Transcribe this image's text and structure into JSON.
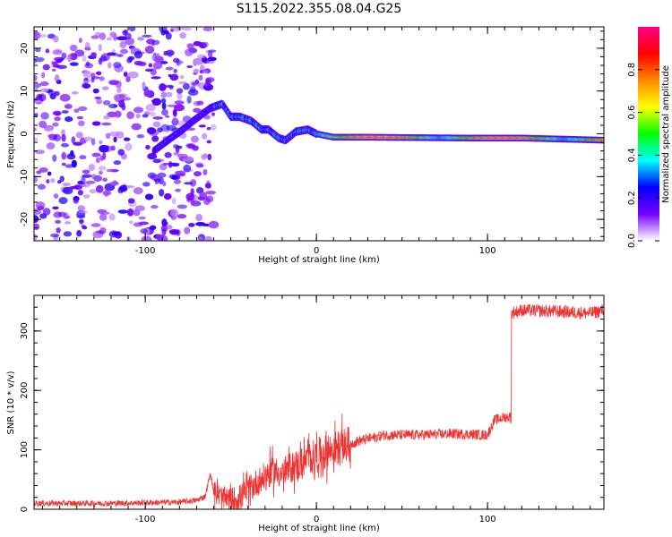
{
  "title": "S115.2022.355.08.04.G25",
  "colors": {
    "snr_line": "#ee3333",
    "axis": "#000000"
  },
  "chart_data": [
    {
      "type": "heatmap",
      "name": "spectrogram",
      "xlabel": "Height of straight line (km)",
      "ylabel": "Frequency (Hz)",
      "xlim": [
        -165,
        168
      ],
      "ylim": [
        -25,
        25
      ],
      "xticks": [
        -100,
        0,
        100
      ],
      "xtick_labels": [
        "-100",
        "0",
        "100"
      ],
      "yticks": [
        -20,
        -10,
        0,
        10,
        20
      ],
      "ytick_labels": [
        "-20",
        "-10",
        "0",
        "10",
        "20"
      ],
      "colorbar": {
        "label": "Normalized spectral amplitude",
        "range": [
          0,
          1
        ],
        "ticks": [
          0.0,
          0.2,
          0.4,
          0.6,
          0.8
        ],
        "tick_labels": [
          "0.0",
          "0.2",
          "0.4",
          "0.6",
          "0.8"
        ],
        "colormap": [
          "#ffffff",
          "#7700ff",
          "#0000ff",
          "#00ffff",
          "#00ff00",
          "#ffff00",
          "#ff8800",
          "#ff0000",
          "#ff0088"
        ]
      },
      "noise_region": {
        "x": [
          -165,
          -60
        ],
        "y": [
          -25,
          25
        ],
        "amplitude": 0.15
      },
      "ridge": [
        {
          "x": -95,
          "y": -4
        },
        {
          "x": -85,
          "y": -1
        },
        {
          "x": -78,
          "y": 1
        },
        {
          "x": -72,
          "y": 3
        },
        {
          "x": -62,
          "y": 6
        },
        {
          "x": -55,
          "y": 7
        },
        {
          "x": -50,
          "y": 4
        },
        {
          "x": -45,
          "y": 4
        },
        {
          "x": -38,
          "y": 3
        },
        {
          "x": -32,
          "y": 1
        },
        {
          "x": -28,
          "y": 1
        },
        {
          "x": -22,
          "y": -1
        },
        {
          "x": -18,
          "y": -1.5
        },
        {
          "x": -12,
          "y": 0.5
        },
        {
          "x": -5,
          "y": 1
        },
        {
          "x": 0,
          "y": 0
        },
        {
          "x": 10,
          "y": -0.8
        },
        {
          "x": 30,
          "y": -0.8
        },
        {
          "x": 60,
          "y": -0.9
        },
        {
          "x": 90,
          "y": -1
        },
        {
          "x": 120,
          "y": -1
        },
        {
          "x": 150,
          "y": -1.3
        },
        {
          "x": 168,
          "y": -1.5
        }
      ]
    },
    {
      "type": "line",
      "name": "snr",
      "xlabel": "Height of straight line (km)",
      "ylabel": "SNR (10 * v/v)",
      "xlim": [
        -165,
        168
      ],
      "ylim": [
        0,
        360
      ],
      "xticks": [
        -100,
        0,
        100
      ],
      "xtick_labels": [
        "-100",
        "0",
        "100"
      ],
      "yticks": [
        0,
        100,
        200,
        300
      ],
      "ytick_labels": [
        "0",
        "100",
        "200",
        "300"
      ],
      "series": [
        {
          "x": [
            -165,
            -120,
            -80,
            -70,
            -65,
            -62,
            -60,
            -55,
            -50,
            -45,
            -40,
            -35,
            -30,
            -25,
            -20,
            -15,
            -10,
            -5,
            0,
            10,
            20,
            25,
            40,
            60,
            80,
            100,
            104,
            110,
            113,
            114,
            120,
            140,
            160,
            168
          ],
          "y": [
            10,
            10,
            12,
            15,
            22,
            60,
            30,
            18,
            15,
            20,
            30,
            45,
            55,
            65,
            60,
            70,
            75,
            85,
            90,
            100,
            110,
            115,
            125,
            125,
            127,
            125,
            150,
            155,
            155,
            330,
            335,
            333,
            330,
            335
          ]
        }
      ]
    }
  ]
}
